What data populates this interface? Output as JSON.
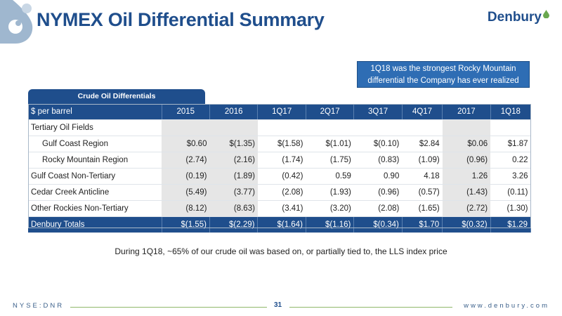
{
  "header": {
    "title": "NYMEX Oil Differential Summary",
    "logo_text": "Denbury"
  },
  "callout": {
    "line1": "1Q18 was the strongest Rocky Mountain",
    "line2": "differential the Company has ever realized"
  },
  "table": {
    "tab_label": "Crude Oil Differentials",
    "header": [
      "$ per barrel",
      "2015",
      "2016",
      "1Q17",
      "2Q17",
      "3Q17",
      "4Q17",
      "2017",
      "1Q18"
    ],
    "rows": [
      {
        "label": "Tertiary Oil Fields",
        "values": [
          "",
          "",
          "",
          "",
          "",
          "",
          "",
          ""
        ]
      },
      {
        "label": "Gulf Coast Region",
        "values": [
          "$0.60",
          "$(1.35)",
          "$(1.58)",
          "$(1.01)",
          "$(0.10)",
          "$2.84",
          "$0.06",
          "$1.87"
        ]
      },
      {
        "label": "Rocky Mountain Region",
        "values": [
          "(2.74)",
          "(2.16)",
          "(1.74)",
          "(1.75)",
          "(0.83)",
          "(1.09)",
          "(0.96)",
          "0.22"
        ]
      },
      {
        "label": "Gulf Coast Non-Tertiary",
        "values": [
          "(0.19)",
          "(1.89)",
          "(0.42)",
          "0.59",
          "0.90",
          "4.18",
          "1.26",
          "3.26"
        ]
      },
      {
        "label": "Cedar Creek Anticline",
        "values": [
          "(5.49)",
          "(3.77)",
          "(2.08)",
          "(1.93)",
          "(0.96)",
          "(0.57)",
          "(1.43)",
          "(0.11)"
        ]
      },
      {
        "label": "Other Rockies Non-Tertiary",
        "values": [
          "(8.12)",
          "(8.63)",
          "(3.41)",
          "(3.20)",
          "(2.08)",
          "(1.65)",
          "(2.72)",
          "(1.30)"
        ]
      }
    ],
    "total": {
      "label": "Denbury Totals",
      "values": [
        "$(1.55)",
        "$(2.29)",
        "$(1.64)",
        "$(1.16)",
        "$(0.34)",
        "$1.70",
        "$(0.32)",
        "$1.29"
      ]
    }
  },
  "note": "During 1Q18, ~65% of our crude oil was based on, or partially tied to, the LLS index price",
  "footer": {
    "left": "NYSE:DNR",
    "page": "31",
    "right": "www.denbury.com"
  },
  "colors": {
    "brand_blue": "#1f4e8c",
    "callout_blue": "#2e6db4",
    "accent_green": "#8fb86a",
    "shade_gray": "#e6e6e6"
  }
}
